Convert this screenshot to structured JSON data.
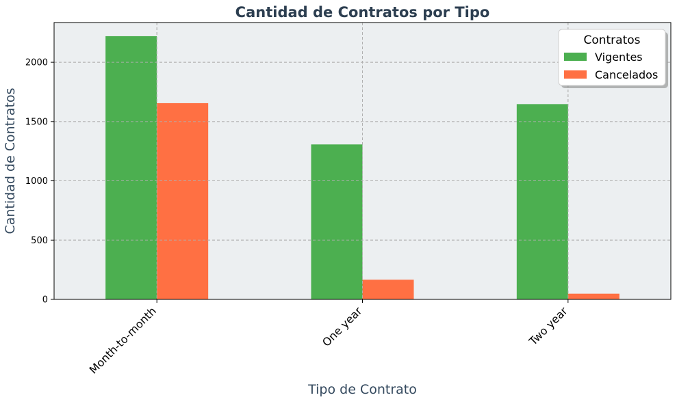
{
  "chart_data": {
    "type": "bar",
    "title": "Cantidad de Contratos por Tipo",
    "xlabel": "Tipo de Contrato",
    "ylabel": "Cantidad de Contratos",
    "categories": [
      "Month-to-month",
      "One year",
      "Two year"
    ],
    "series": [
      {
        "name": "Vigentes",
        "values": [
          2220,
          1307,
          1647
        ],
        "color": "#4caf50"
      },
      {
        "name": "Cancelados",
        "values": [
          1655,
          166,
          48
        ],
        "color": "#ff7043"
      }
    ],
    "ylim": [
      0,
      2335
    ],
    "yticks": [
      0,
      500,
      1000,
      1500,
      2000
    ],
    "grid": true,
    "legend": {
      "title": "Contratos",
      "placement": "top-right"
    },
    "colors": {
      "plot_background": "#eceff1",
      "title": "#2c3e50",
      "axis_label": "#34495e",
      "grid": "#b0b0b0"
    }
  }
}
